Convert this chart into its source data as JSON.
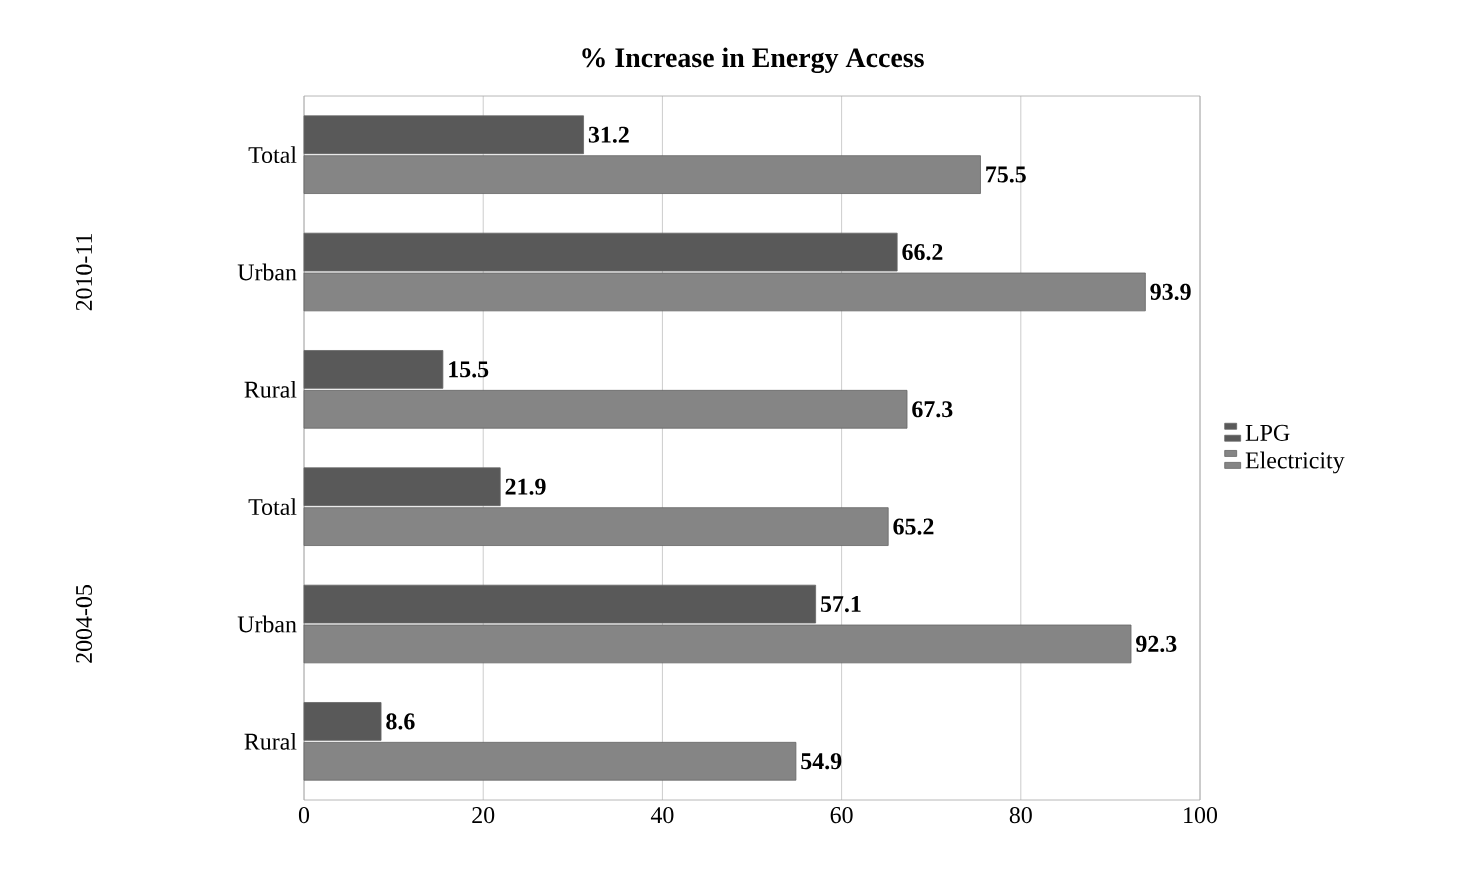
{
  "chart_data": {
    "type": "bar",
    "orientation": "horizontal",
    "title": "% Increase in  Energy Access",
    "categories": [
      "Total",
      "Urban",
      "Rural",
      "Total",
      "Urban",
      "Rural"
    ],
    "series": [
      {
        "name": "LPG",
        "color": "#595959",
        "values": [
          31.2,
          66.2,
          15.5,
          21.9,
          57.1,
          8.6
        ]
      },
      {
        "name": "Electricity",
        "color": "#858585",
        "values": [
          75.5,
          93.9,
          67.3,
          65.2,
          92.3,
          54.9
        ]
      }
    ],
    "annotations": [
      "2010-11",
      "2004-05"
    ],
    "xlim": [
      0,
      100
    ],
    "xticks": [
      0,
      20,
      40,
      60,
      80,
      100
    ],
    "grid": "x",
    "legend": "right",
    "data_labels": true
  }
}
